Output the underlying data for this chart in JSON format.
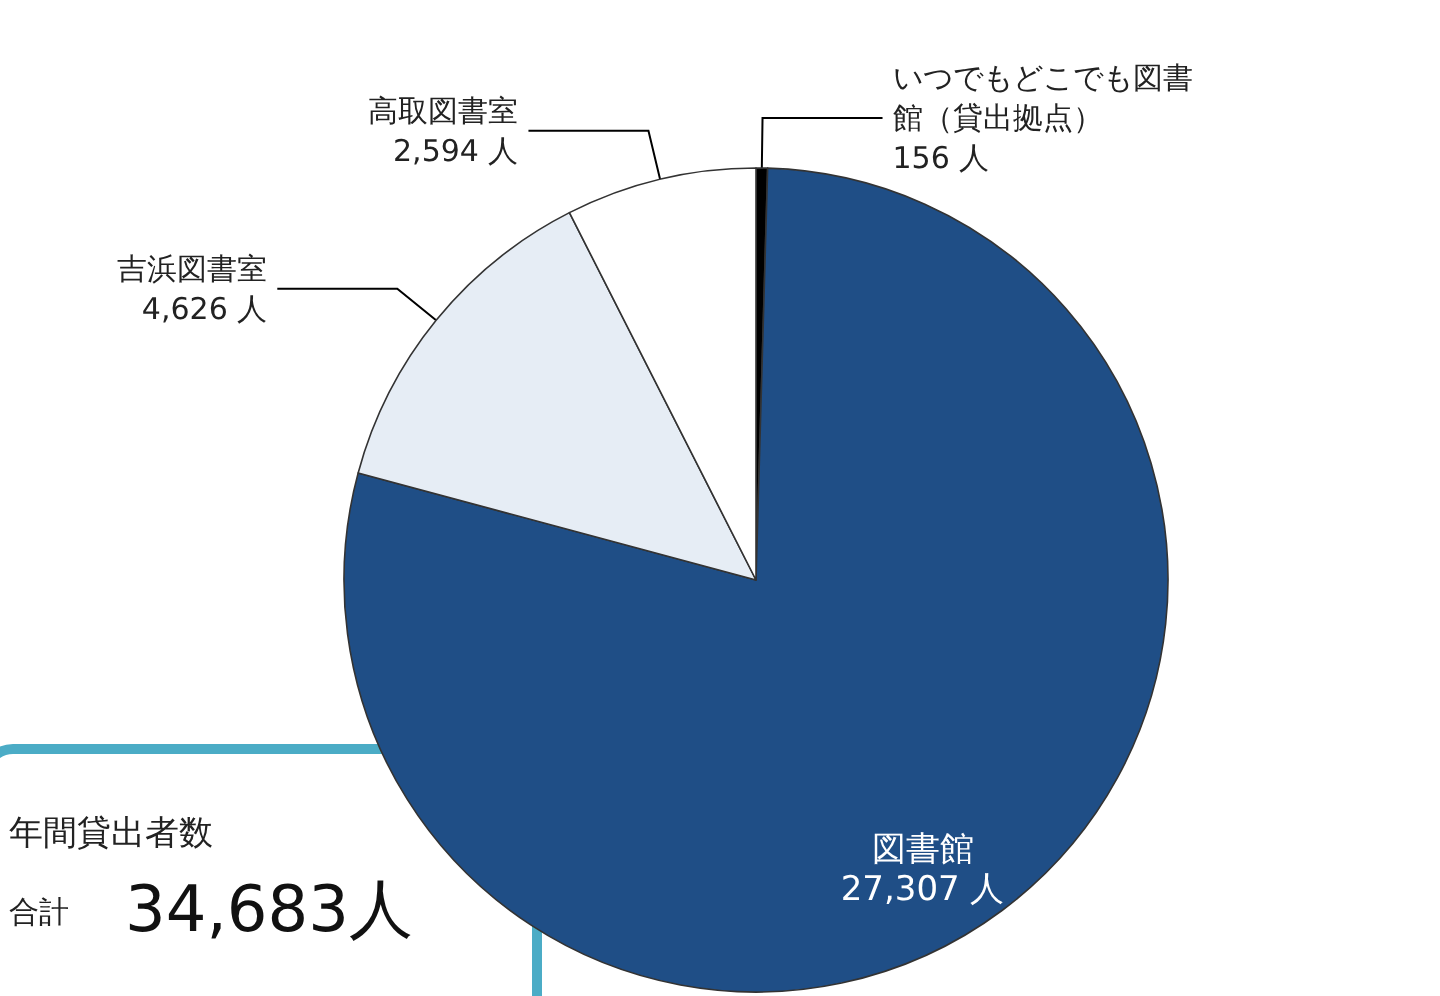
{
  "chart_data": {
    "type": "pie",
    "categories": [
      "いつでもどこでも図書館（貸出拠点）",
      "図書館",
      "吉浜図書室",
      "高取図書室"
    ],
    "values": [
      156,
      27307,
      4626,
      2594
    ],
    "value_labels": [
      "156 人",
      "27,307 人",
      "4,626 人",
      "2,594 人"
    ],
    "colors": [
      "#000000",
      "#1f4e86",
      "#e6edf5",
      "#ffffff"
    ],
    "annotations": [
      "年間貸出者数",
      "合計",
      "34,683人"
    ],
    "legend": false
  }
}
